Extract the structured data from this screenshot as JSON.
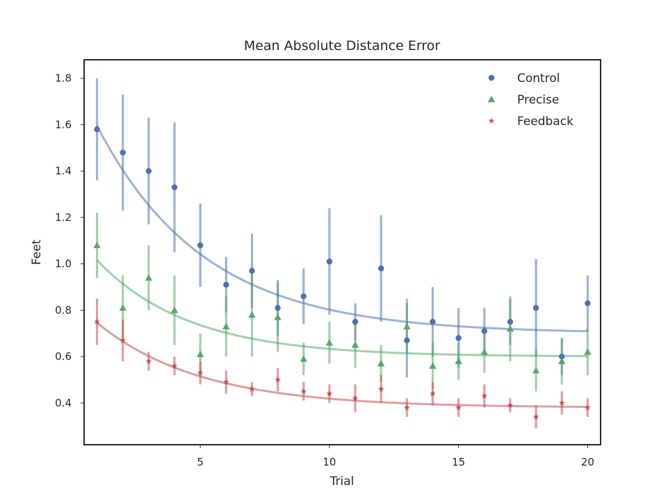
{
  "chart_data": {
    "type": "scatter",
    "title": "Mean Absolute Distance Error",
    "xlabel": "Trial",
    "ylabel": "Feet",
    "xlim": [
      0.5,
      20.5
    ],
    "ylim": [
      0.22,
      1.88
    ],
    "xticks": [
      5,
      10,
      15,
      20
    ],
    "yticks": [
      0.4,
      0.6,
      0.8,
      1.0,
      1.2,
      1.4,
      1.6,
      1.8
    ],
    "xtick_labels": [
      "5",
      "10",
      "15",
      "20"
    ],
    "ytick_labels": [
      "0.4",
      "0.6",
      "0.8",
      "1.0",
      "1.2",
      "1.4",
      "1.6",
      "1.8"
    ],
    "grid": false,
    "legend": "top-right",
    "series": [
      {
        "name": "Control",
        "marker": "circle",
        "color": "#4c72b0",
        "x": [
          1,
          2,
          3,
          4,
          5,
          6,
          7,
          8,
          9,
          10,
          11,
          12,
          13,
          14,
          15,
          16,
          17,
          18,
          19,
          20
        ],
        "y": [
          1.58,
          1.48,
          1.4,
          1.33,
          1.08,
          0.91,
          0.97,
          0.81,
          0.86,
          1.01,
          0.75,
          0.98,
          0.67,
          0.75,
          0.68,
          0.71,
          0.75,
          0.81,
          0.6,
          0.83
        ],
        "err": [
          0.22,
          0.25,
          0.23,
          0.28,
          0.18,
          0.12,
          0.16,
          0.12,
          0.12,
          0.23,
          0.08,
          0.23,
          0.16,
          0.15,
          0.13,
          0.1,
          0.1,
          0.21,
          0.08,
          0.12
        ],
        "fit": {
          "a": 0.7,
          "b": 1.14,
          "k": 0.241
        }
      },
      {
        "name": "Precise",
        "marker": "triangle",
        "color": "#55a868",
        "x": [
          1,
          2,
          3,
          4,
          5,
          6,
          7,
          8,
          9,
          10,
          11,
          12,
          13,
          14,
          15,
          16,
          17,
          18,
          19,
          20
        ],
        "y": [
          1.08,
          0.81,
          0.94,
          0.8,
          0.61,
          0.73,
          0.78,
          0.77,
          0.59,
          0.66,
          0.65,
          0.57,
          0.73,
          0.56,
          0.58,
          0.62,
          0.72,
          0.54,
          0.58,
          0.62
        ],
        "err": [
          0.14,
          0.14,
          0.14,
          0.15,
          0.09,
          0.13,
          0.18,
          0.15,
          0.07,
          0.09,
          0.1,
          0.08,
          0.12,
          0.1,
          0.08,
          0.09,
          0.14,
          0.09,
          0.1,
          0.1
        ],
        "fit": {
          "a": 0.6,
          "b": 0.55,
          "k": 0.28
        }
      },
      {
        "name": "Feedback",
        "marker": "star",
        "color": "#c44e52",
        "x": [
          1,
          2,
          3,
          4,
          5,
          6,
          7,
          8,
          9,
          10,
          11,
          12,
          13,
          14,
          15,
          16,
          17,
          18,
          19,
          20
        ],
        "y": [
          0.75,
          0.67,
          0.58,
          0.56,
          0.53,
          0.49,
          0.46,
          0.5,
          0.45,
          0.44,
          0.42,
          0.46,
          0.38,
          0.44,
          0.38,
          0.43,
          0.39,
          0.34,
          0.4,
          0.38
        ],
        "err": [
          0.1,
          0.09,
          0.04,
          0.04,
          0.05,
          0.05,
          0.03,
          0.05,
          0.04,
          0.04,
          0.06,
          0.06,
          0.04,
          0.05,
          0.04,
          0.05,
          0.03,
          0.05,
          0.05,
          0.04
        ],
        "fit": {
          "a": 0.38,
          "b": 0.47,
          "k": 0.25
        }
      }
    ]
  }
}
